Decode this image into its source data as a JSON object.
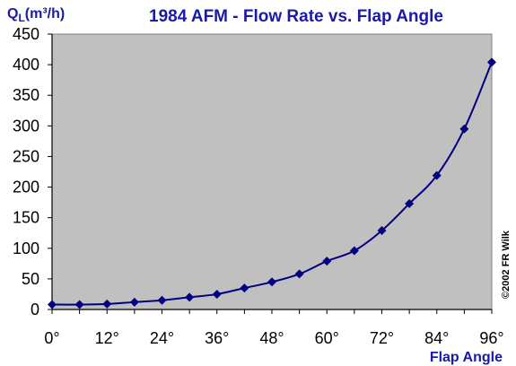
{
  "colors": {
    "plot_background": "#c0c0c0",
    "series": "#000080",
    "title": "#1a1aa8",
    "axis_label": "#1a1aa8",
    "tick": "#000000"
  },
  "chart_data": {
    "type": "line",
    "title": "1984 AFM - Flow Rate vs. Flap Angle",
    "xlabel": "Flap Angle",
    "ylabel": "Q",
    "ylabel_sub": "L",
    "ylabel_unit": "(m³/h)",
    "xlim": [
      0,
      96
    ],
    "ylim": [
      0,
      450
    ],
    "x_ticks": [
      0,
      12,
      24,
      36,
      48,
      60,
      72,
      84,
      96
    ],
    "x_tick_labels": [
      "0°",
      "12°",
      "24°",
      "36°",
      "48°",
      "60°",
      "72°",
      "84°",
      "96°"
    ],
    "y_ticks": [
      0,
      50,
      100,
      150,
      200,
      250,
      300,
      350,
      400,
      450
    ],
    "y_tick_labels": [
      "0",
      "50",
      "100",
      "150",
      "200",
      "250",
      "300",
      "350",
      "400",
      "450"
    ],
    "grid": false,
    "marker": "diamond",
    "series": [
      {
        "x": [
          0,
          6,
          12,
          18,
          24,
          30,
          36,
          42,
          48,
          54,
          60,
          66,
          72,
          78,
          84,
          90,
          96
        ],
        "values": [
          8,
          8,
          9,
          12,
          15,
          20,
          25,
          35,
          45,
          58,
          79,
          96,
          129,
          173,
          219,
          295,
          404
        ]
      }
    ],
    "copyright": "©2002  FR Wilk"
  }
}
